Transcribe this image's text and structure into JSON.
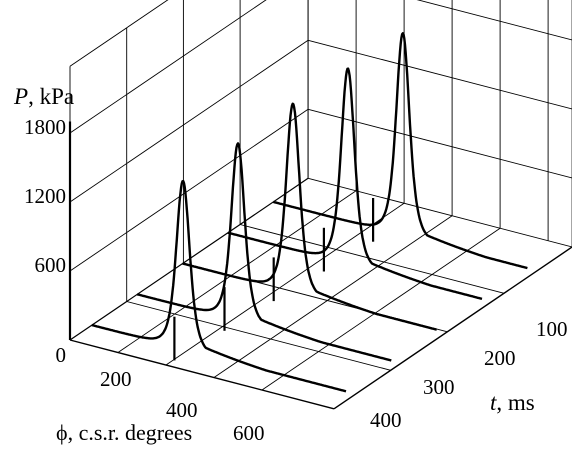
{
  "chart_data": {
    "type": "line",
    "projection": "3d-waterfall",
    "axes": {
      "z": {
        "label_symbol": "P",
        "label_unit": ", kPa",
        "ticks": [
          "0",
          "600",
          "1200",
          "1800"
        ],
        "range": [
          0,
          2000
        ]
      },
      "x": {
        "label": "ϕ, c.s.r. degrees",
        "ticks": [
          "200",
          "400",
          "600"
        ],
        "range": [
          100,
          650
        ]
      },
      "y": {
        "label_symbol": "t",
        "label_unit": ", ms",
        "ticks": [
          "100",
          "200",
          "300",
          "400"
        ],
        "range": [
          60,
          480
        ]
      }
    },
    "grid": true,
    "series": [
      {
        "t": 450,
        "peak_phi": 300,
        "peak_P": 1500,
        "marker_phi": 282
      },
      {
        "t": 370,
        "peak_phi": 320,
        "peak_P": 1580,
        "marker_phi": 292
      },
      {
        "t": 290,
        "peak_phi": 340,
        "peak_P": 1680,
        "marker_phi": 300
      },
      {
        "t": 210,
        "peak_phi": 360,
        "peak_P": 1740,
        "marker_phi": 310
      },
      {
        "t": 130,
        "peak_phi": 380,
        "peak_P": 1800,
        "marker_phi": 318
      }
    ],
    "curve_model": {
      "baseline_P": 40,
      "low_phi_level": 140,
      "low_phi_width": 45,
      "peak_width": 18,
      "phi_start": 110,
      "phi_end": 640
    }
  }
}
